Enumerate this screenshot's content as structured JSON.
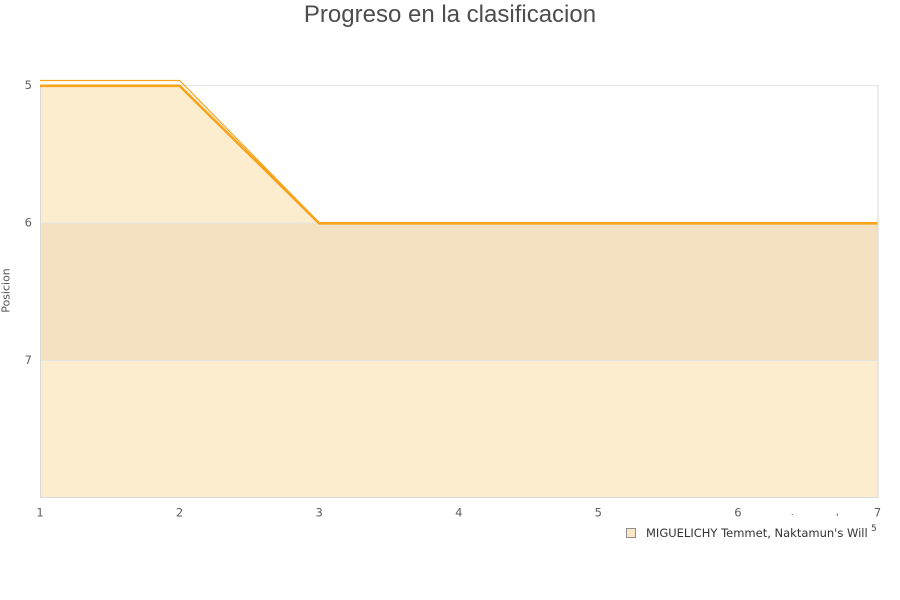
{
  "title": "Progreso en la clasificacion",
  "axes": {
    "y_title": "Posicion",
    "x_tick_labels": [
      "1",
      "2",
      "3",
      "4",
      "5",
      "6",
      "7"
    ],
    "y_tick_labels": [
      "5",
      "6",
      "7"
    ]
  },
  "legend": {
    "label": "MIGUELICHY Temmet, Naktamun's Will",
    "superscript": "5",
    "artifact_marks": [
      "˙",
      "'"
    ]
  },
  "colors": {
    "line": "#f7a31c",
    "area_fill": "#fcedce",
    "band_fill": "#f3e1c2",
    "gridline": "#e4e4e4",
    "plot_border": "#d8d8d8",
    "tick_text": "#606060",
    "title_text": "#4d4d4d",
    "legend_swatch_fill": "#f9e7c7",
    "legend_swatch_border": "#8f8f8f"
  },
  "chart_data": {
    "type": "area",
    "title": "Progreso en la clasificacion",
    "xlabel": "",
    "ylabel": "Posicion",
    "x": [
      1,
      2,
      3,
      4,
      5,
      6,
      7
    ],
    "series": [
      {
        "name": "MIGUELICHY Temmet, Naktamun's Will",
        "values": [
          5,
          5,
          6,
          6,
          6,
          6,
          6
        ]
      }
    ],
    "x_axis": {
      "ticks": [
        1,
        2,
        3,
        4,
        5,
        6,
        7
      ],
      "range": [
        1,
        7
      ]
    },
    "y_axis": {
      "ticks": [
        5,
        6,
        7
      ],
      "range": [
        5,
        8
      ],
      "reversed_positions": true
    },
    "highlight_band": {
      "from": 6,
      "to": 7
    },
    "grid": true,
    "legend_position": "bottom-right"
  }
}
